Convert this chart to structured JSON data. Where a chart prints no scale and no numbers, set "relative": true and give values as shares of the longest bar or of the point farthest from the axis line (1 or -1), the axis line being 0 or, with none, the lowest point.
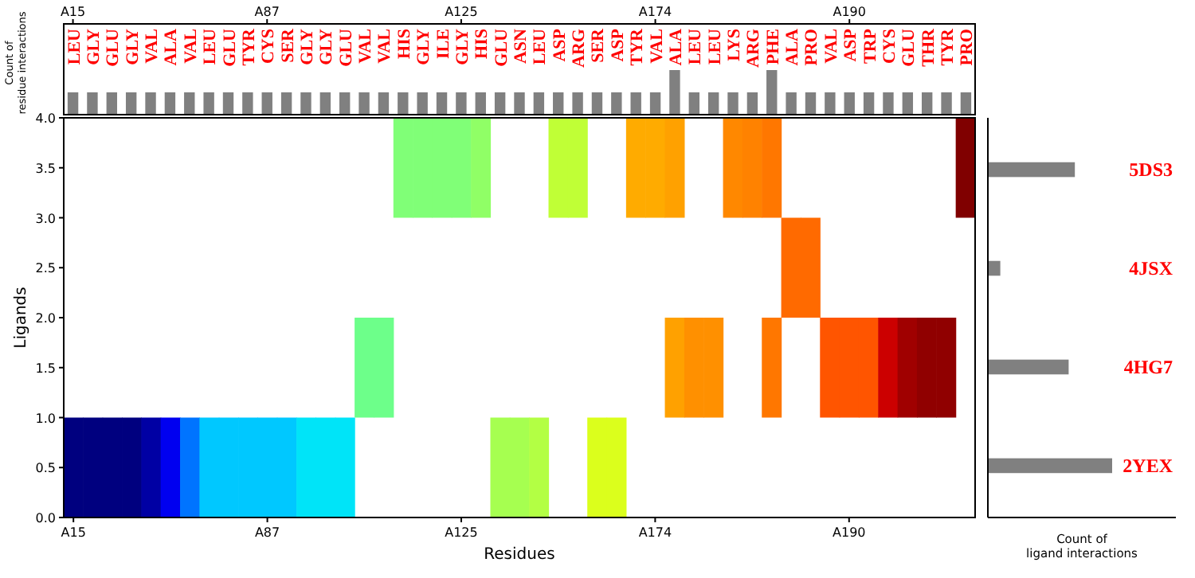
{
  "chart_data": [
    {
      "type": "bar",
      "ylabel": "Count of residue interactions",
      "relative": true,
      "tick_labels": "x",
      "color": "#808080",
      "categories": [
        "LEU",
        "GLY",
        "GLU",
        "GLY",
        "VAL",
        "ALA",
        "VAL",
        "LEU",
        "GLU",
        "TYR",
        "CYS",
        "SER",
        "GLY",
        "GLY",
        "GLU",
        "VAL",
        "VAL",
        "HIS",
        "GLY",
        "ILE",
        "GLY",
        "HIS",
        "GLU",
        "ASN",
        "LEU",
        "ASP",
        "ARG",
        "SER",
        "ASP",
        "TYR",
        "VAL",
        "ALA",
        "LEU",
        "LEU",
        "LYS",
        "ARG",
        "PHE",
        "ALA",
        "PRO",
        "VAL",
        "ASP",
        "TRP",
        "CYS",
        "GLU",
        "THR",
        "TYR",
        "PRO"
      ],
      "values": [
        0.5,
        0.5,
        0.5,
        0.5,
        0.5,
        0.5,
        0.5,
        0.5,
        0.5,
        0.5,
        0.5,
        0.5,
        0.5,
        0.5,
        0.5,
        0.5,
        0.5,
        0.5,
        0.5,
        0.5,
        0.5,
        0.5,
        0.5,
        0.5,
        0.5,
        0.5,
        0.5,
        0.5,
        0.5,
        0.5,
        0.5,
        1,
        0.5,
        0.5,
        0.5,
        0.5,
        1,
        0.5,
        0.5,
        0.5,
        0.5,
        0.5,
        0.5,
        0.5,
        0.5,
        0.5,
        0.5
      ],
      "annotations": [
        "A15",
        "A87",
        "A125",
        "A174",
        "A190"
      ]
    },
    {
      "type": "bar",
      "xlabel": "Residues",
      "ylabel": "Ligands",
      "categories": [
        "A15",
        null,
        null,
        null,
        null,
        null,
        null,
        null,
        null,
        null,
        "A87",
        null,
        null,
        null,
        null,
        null,
        null,
        null,
        null,
        null,
        "A125",
        null,
        null,
        null,
        null,
        null,
        null,
        null,
        null,
        null,
        "A174",
        null,
        null,
        null,
        null,
        null,
        null,
        null,
        null,
        null,
        "A190",
        null,
        null,
        null,
        null,
        null,
        null
      ],
      "ylim": [
        0,
        4
      ],
      "yticks": [
        {
          "value": 0,
          "label": "0.0"
        },
        {
          "value": 0.5,
          "label": "0.5"
        },
        {
          "value": 1,
          "label": "1.0"
        },
        {
          "value": 1.5,
          "label": "1.5"
        },
        {
          "value": 2,
          "label": "2.0"
        },
        {
          "value": 2.5,
          "label": "2.5"
        },
        {
          "value": 3,
          "label": "3.0"
        },
        {
          "value": 3.5,
          "label": "3.5"
        },
        {
          "value": 4,
          "label": "4.0"
        }
      ],
      "series": [
        {
          "values": [
            1,
            1,
            1,
            1,
            1,
            1,
            1,
            1,
            1,
            1,
            1,
            1,
            1,
            1,
            1,
            null,
            null,
            null,
            null,
            null,
            null,
            null,
            1,
            1,
            1,
            null,
            null,
            1,
            1,
            null,
            null,
            null,
            null,
            null,
            null,
            null,
            null,
            null,
            null,
            null,
            null,
            null,
            null,
            null,
            null,
            null,
            null
          ],
          "base": [
            0,
            0,
            0,
            0,
            0,
            0,
            0,
            0,
            0,
            0,
            0,
            0,
            0,
            0,
            0,
            null,
            null,
            null,
            null,
            null,
            null,
            null,
            0,
            0,
            0,
            null,
            null,
            0,
            0,
            null,
            null,
            null,
            null,
            null,
            null,
            null,
            null,
            null,
            null,
            null,
            null,
            null,
            null,
            null,
            null,
            null,
            null
          ],
          "colors": [
            "#00007f",
            "#00007f",
            "#00007f",
            "#00007f",
            "#0000a4",
            "#0000f0",
            "#0074ff",
            "#00c8ff",
            "#00c8ff",
            "#00c8ff",
            "#00c8ff",
            "#00c8ff",
            "#00e4f8",
            "#00e4f8",
            "#00e4f8",
            null,
            null,
            null,
            null,
            null,
            null,
            null,
            "#a6ff50",
            "#a6ff50",
            "#b3ff44",
            null,
            null,
            "#dbff1c",
            "#dbff1c",
            null,
            null,
            null,
            null,
            null,
            null,
            null,
            null,
            null,
            null,
            null,
            null,
            null,
            null,
            null,
            null,
            null,
            null
          ]
        },
        {
          "values": [
            null,
            null,
            null,
            null,
            null,
            null,
            null,
            null,
            null,
            null,
            null,
            null,
            null,
            null,
            null,
            1,
            1,
            null,
            null,
            null,
            null,
            null,
            null,
            null,
            null,
            null,
            null,
            null,
            null,
            null,
            null,
            1,
            1,
            1,
            null,
            null,
            1,
            null,
            null,
            1,
            1,
            1,
            1,
            1,
            1,
            1,
            null
          ],
          "base": [
            null,
            null,
            null,
            null,
            null,
            null,
            null,
            null,
            null,
            null,
            null,
            null,
            null,
            null,
            null,
            1,
            1,
            null,
            null,
            null,
            null,
            null,
            null,
            null,
            null,
            null,
            null,
            null,
            null,
            null,
            null,
            1,
            1,
            1,
            null,
            null,
            1,
            null,
            null,
            1,
            1,
            1,
            1,
            1,
            1,
            1,
            null
          ],
          "colors": [
            null,
            null,
            null,
            null,
            null,
            null,
            null,
            null,
            null,
            null,
            null,
            null,
            null,
            null,
            null,
            "#6dff8a",
            "#6dff8a",
            null,
            null,
            null,
            null,
            null,
            null,
            null,
            null,
            null,
            null,
            null,
            null,
            null,
            null,
            "#ffa100",
            "#ff9000",
            "#ff9000",
            null,
            null,
            "#ff7700",
            null,
            null,
            "#ff5500",
            "#ff5500",
            "#ff5500",
            "#cc0000",
            "#a00000",
            "#900000",
            "#900000",
            null
          ]
        },
        {
          "values": [
            null,
            null,
            null,
            null,
            null,
            null,
            null,
            null,
            null,
            null,
            null,
            null,
            null,
            null,
            null,
            null,
            null,
            null,
            null,
            null,
            null,
            null,
            null,
            null,
            null,
            null,
            null,
            null,
            null,
            null,
            null,
            null,
            null,
            null,
            null,
            null,
            null,
            1,
            1,
            null,
            null,
            null,
            null,
            null,
            null,
            null,
            null
          ],
          "base": [
            null,
            null,
            null,
            null,
            null,
            null,
            null,
            null,
            null,
            null,
            null,
            null,
            null,
            null,
            null,
            null,
            null,
            null,
            null,
            null,
            null,
            null,
            null,
            null,
            null,
            null,
            null,
            null,
            null,
            null,
            null,
            null,
            null,
            null,
            null,
            null,
            null,
            2,
            2,
            null,
            null,
            null,
            null,
            null,
            null,
            null,
            null
          ],
          "color": "#ff6a00"
        },
        {
          "values": [
            null,
            null,
            null,
            null,
            null,
            null,
            null,
            null,
            null,
            null,
            null,
            null,
            null,
            null,
            null,
            null,
            null,
            1,
            1,
            1,
            1,
            1,
            null,
            null,
            null,
            1,
            1,
            null,
            null,
            1,
            1,
            1,
            null,
            null,
            1,
            1,
            1,
            null,
            null,
            null,
            null,
            null,
            null,
            null,
            null,
            null,
            1
          ],
          "base": [
            null,
            null,
            null,
            null,
            null,
            null,
            null,
            null,
            null,
            null,
            null,
            null,
            null,
            null,
            null,
            null,
            null,
            3,
            3,
            3,
            3,
            3,
            null,
            null,
            null,
            3,
            3,
            null,
            null,
            3,
            3,
            3,
            null,
            null,
            3,
            3,
            3,
            null,
            null,
            null,
            null,
            null,
            null,
            null,
            null,
            null,
            3
          ],
          "colors": [
            null,
            null,
            null,
            null,
            null,
            null,
            null,
            null,
            null,
            null,
            null,
            null,
            null,
            null,
            null,
            null,
            null,
            "#80ff77",
            "#80ff77",
            "#80ff77",
            "#80ff77",
            "#90ff66",
            null,
            null,
            null,
            "#c0ff36",
            "#c0ff36",
            null,
            null,
            "#ffab00",
            "#ffab00",
            "#ffa100",
            null,
            null,
            "#ff8800",
            "#ff8200",
            "#ff7700",
            null,
            null,
            null,
            null,
            null,
            null,
            null,
            null,
            null,
            "#800000"
          ]
        }
      ]
    },
    {
      "type": "bar",
      "orientation": "horizontal",
      "relative": true,
      "xlabel": "Count of ligand interactions",
      "color": "#808080",
      "categories": [
        "5DS3",
        "4JSX",
        "4HG7",
        "2YEX"
      ],
      "values": [
        0.7,
        0.1,
        0.65,
        1
      ]
    }
  ]
}
